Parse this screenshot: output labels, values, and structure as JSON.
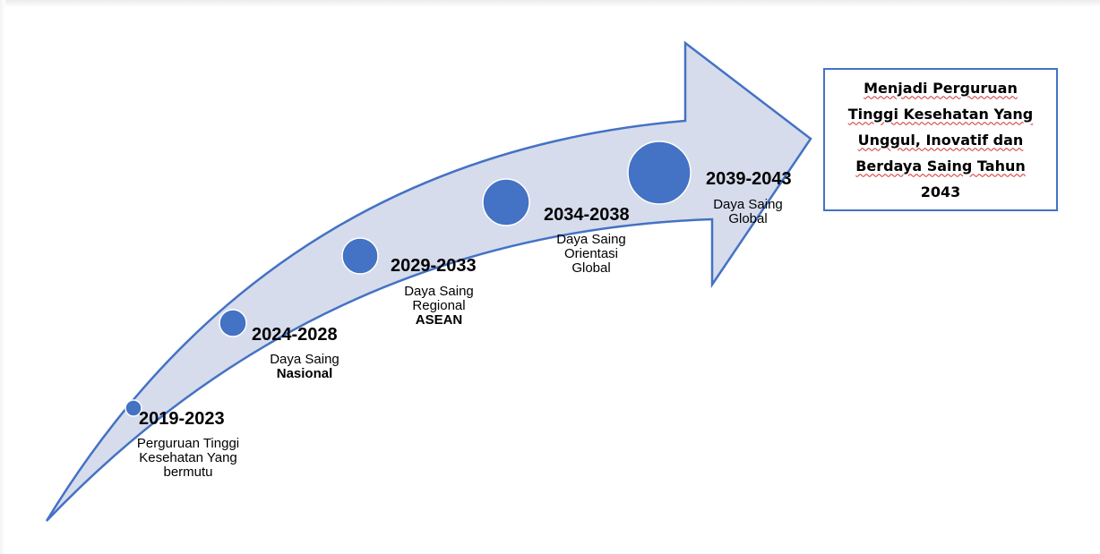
{
  "colors": {
    "arrow_fill": "#d6dcec",
    "arrow_stroke": "#4472c4",
    "circle_fill": "#4472c4",
    "vision_border": "#4472c4"
  },
  "stages": [
    {
      "year": "2019-2023",
      "desc": [
        "Perguruan Tinggi",
        "Kesehatan Yang",
        "bermutu"
      ]
    },
    {
      "year": "2024-2028",
      "desc": [
        "Daya Saing",
        "Nasional"
      ]
    },
    {
      "year": "2029-2033",
      "desc": [
        "Daya Saing",
        "Regional",
        "ASEAN"
      ]
    },
    {
      "year": "2034-2038",
      "desc": [
        "Daya Saing",
        "Orientasi",
        "Global"
      ]
    },
    {
      "year": "2039-2043",
      "desc": [
        "Daya Saing",
        "Global"
      ]
    }
  ],
  "vision": {
    "line1": "Menjadi Perguruan",
    "line2": "Tinggi Kesehatan Yang",
    "line3": "Unggul, Inovatif dan",
    "line4": "Berdaya Saing  Tahun",
    "line5": "2043"
  }
}
